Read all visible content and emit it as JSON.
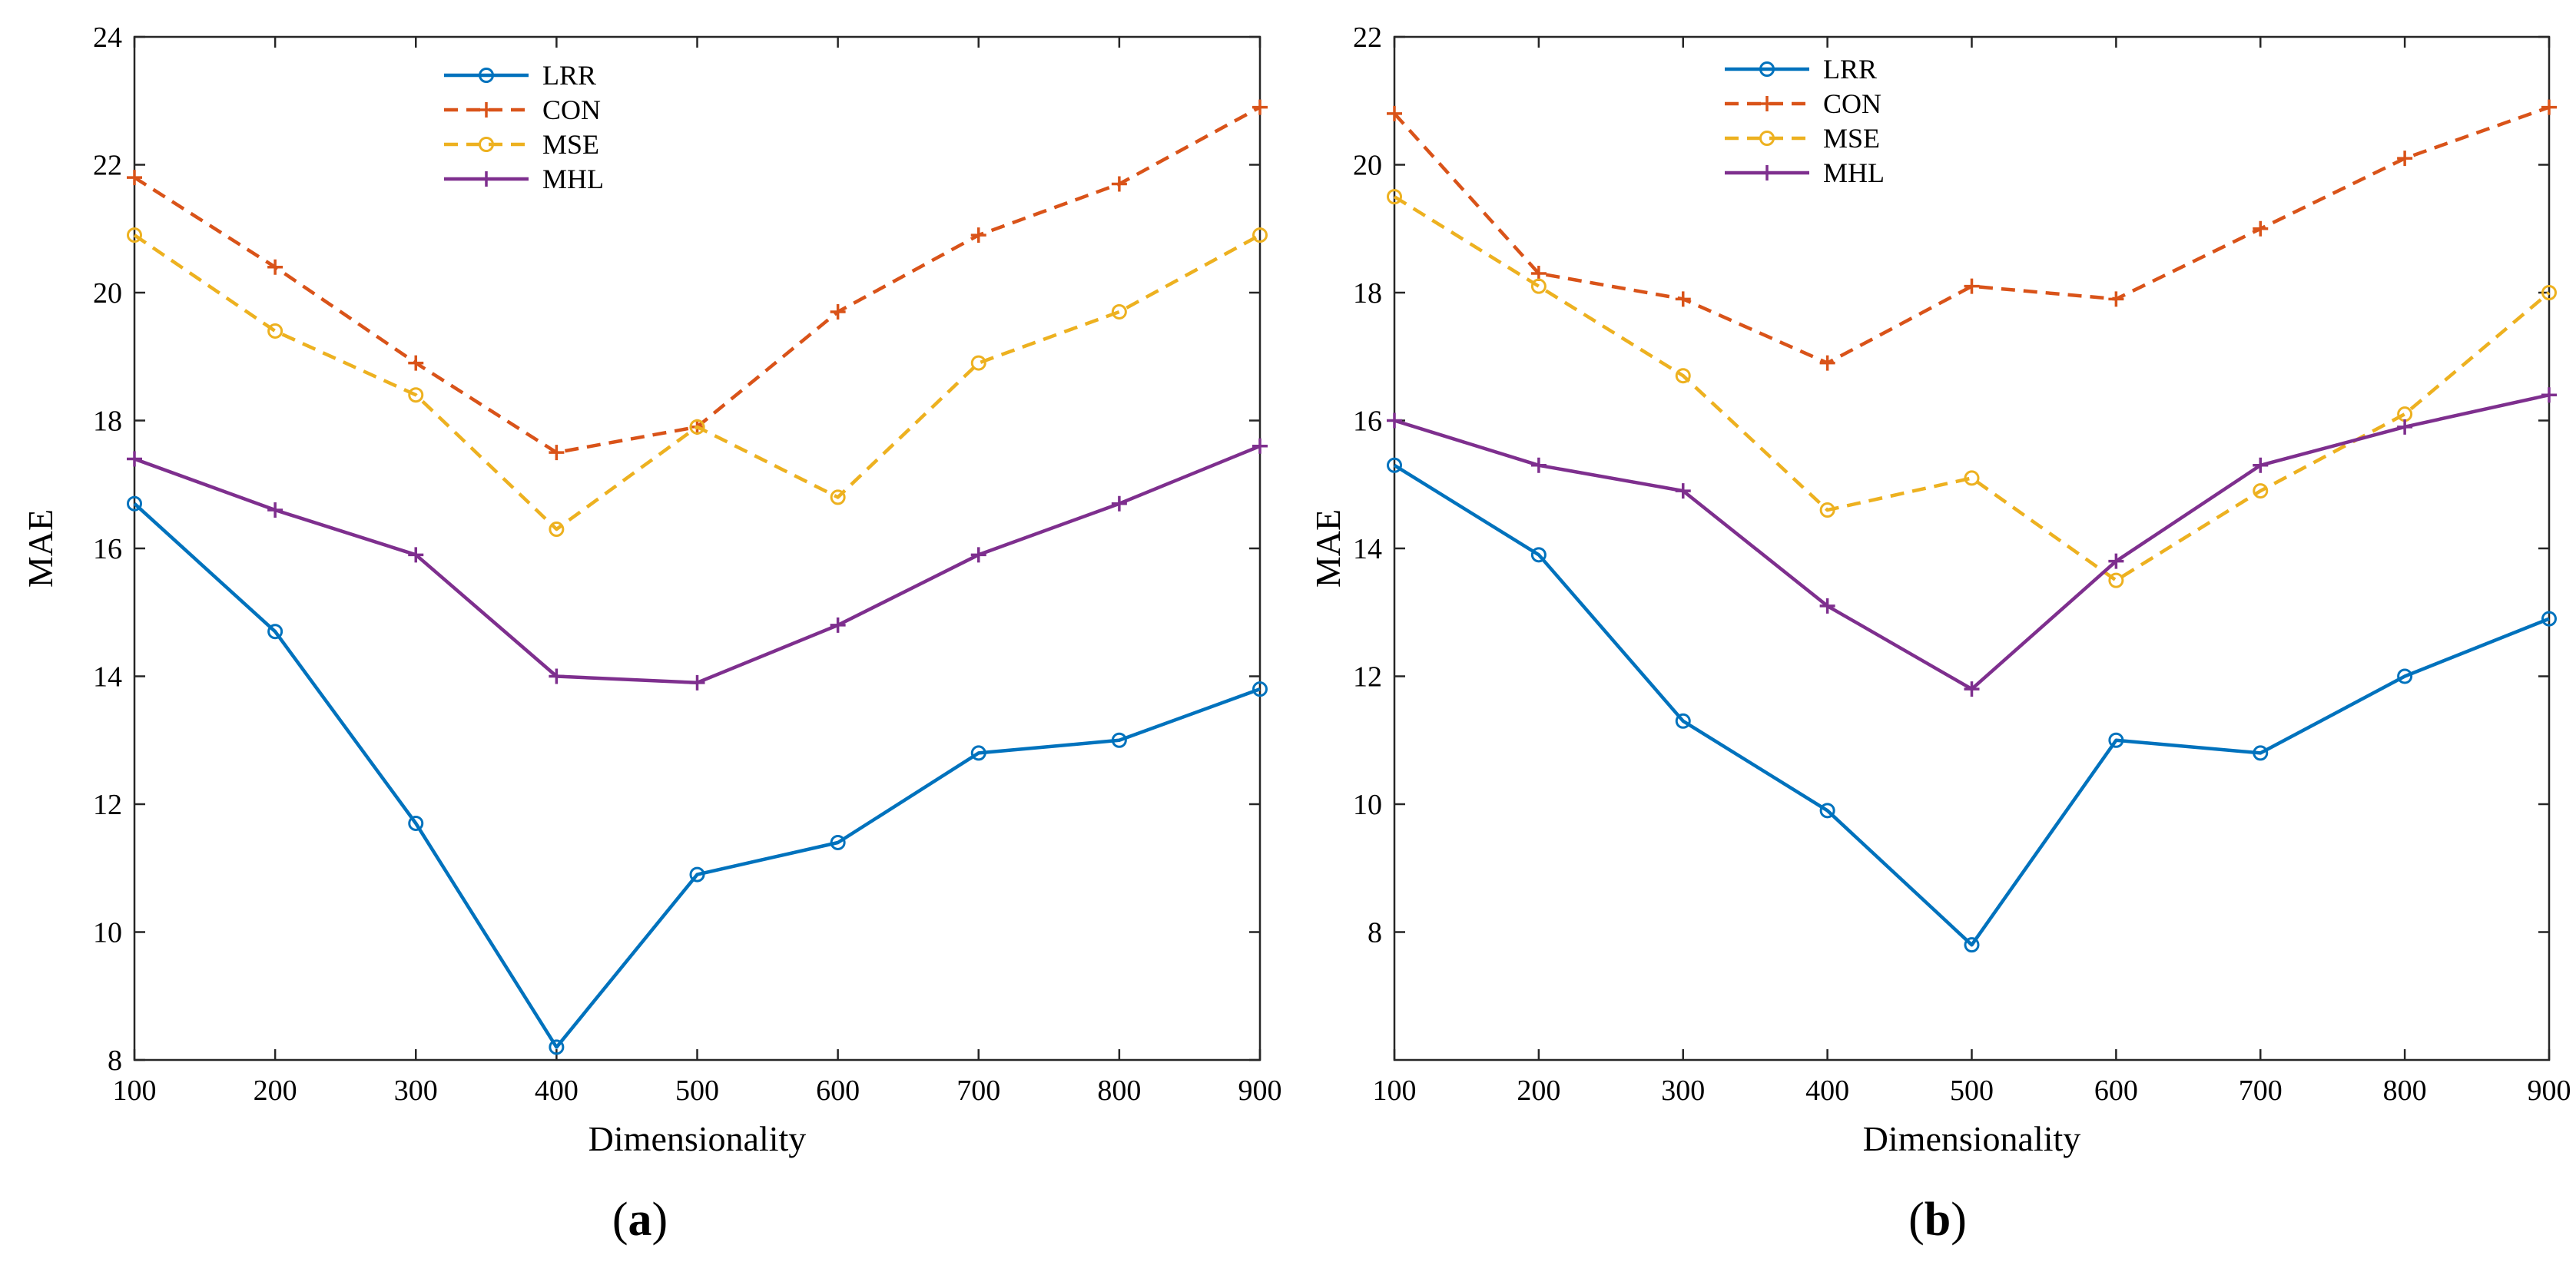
{
  "chart_data": [
    {
      "type": "line",
      "panel": "a",
      "caption_letter": "a",
      "xlabel": "Dimensionality",
      "ylabel": "MAE",
      "x": [
        100,
        200,
        300,
        400,
        500,
        600,
        700,
        800,
        900
      ],
      "xlim": [
        100,
        900
      ],
      "ylim": [
        8,
        24
      ],
      "xticks": [
        100,
        200,
        300,
        400,
        500,
        600,
        700,
        800,
        900
      ],
      "yticks": [
        8,
        10,
        12,
        14,
        16,
        18,
        20,
        22,
        24
      ],
      "legend_position": "top-center",
      "series": [
        {
          "name": "LRR",
          "color": "#0072BD",
          "dash": "solid",
          "marker": "circle",
          "values": [
            16.7,
            14.7,
            11.7,
            8.2,
            10.9,
            11.4,
            12.8,
            13.0,
            13.8
          ]
        },
        {
          "name": "CON",
          "color": "#D95319",
          "dash": "dashed",
          "marker": "plus",
          "values": [
            21.8,
            20.4,
            18.9,
            17.5,
            17.9,
            19.7,
            20.9,
            21.7,
            22.9
          ]
        },
        {
          "name": "MSE",
          "color": "#EDB120",
          "dash": "dashed",
          "marker": "circle",
          "values": [
            20.9,
            19.4,
            18.4,
            16.3,
            17.9,
            16.8,
            18.9,
            19.7,
            20.9
          ]
        },
        {
          "name": "MHL",
          "color": "#7E2F8E",
          "dash": "solid",
          "marker": "plus",
          "values": [
            17.4,
            16.6,
            15.9,
            14.0,
            13.9,
            14.8,
            15.9,
            16.7,
            17.6
          ]
        }
      ]
    },
    {
      "type": "line",
      "panel": "b",
      "caption_letter": "b",
      "xlabel": "Dimensionality",
      "ylabel": "MAE",
      "x": [
        100,
        200,
        300,
        400,
        500,
        600,
        700,
        800,
        900
      ],
      "xlim": [
        100,
        900
      ],
      "ylim": [
        6,
        22
      ],
      "xticks": [
        100,
        200,
        300,
        400,
        500,
        600,
        700,
        800,
        900
      ],
      "yticks": [
        8,
        10,
        12,
        14,
        16,
        18,
        20,
        22
      ],
      "legend_position": "top-center",
      "series": [
        {
          "name": "LRR",
          "color": "#0072BD",
          "dash": "solid",
          "marker": "circle",
          "values": [
            15.3,
            13.9,
            11.3,
            9.9,
            7.8,
            11.0,
            10.8,
            12.0,
            12.9
          ]
        },
        {
          "name": "CON",
          "color": "#D95319",
          "dash": "dashed",
          "marker": "plus",
          "values": [
            20.8,
            18.3,
            17.9,
            16.9,
            18.1,
            17.9,
            19.0,
            20.1,
            20.9
          ]
        },
        {
          "name": "MSE",
          "color": "#EDB120",
          "dash": "dashed",
          "marker": "circle",
          "values": [
            19.5,
            18.1,
            16.7,
            14.6,
            15.1,
            13.5,
            14.9,
            16.1,
            18.0
          ]
        },
        {
          "name": "MHL",
          "color": "#7E2F8E",
          "dash": "solid",
          "marker": "plus",
          "values": [
            16.0,
            15.3,
            14.9,
            13.1,
            11.8,
            13.8,
            15.3,
            15.9,
            16.4
          ]
        }
      ]
    }
  ]
}
